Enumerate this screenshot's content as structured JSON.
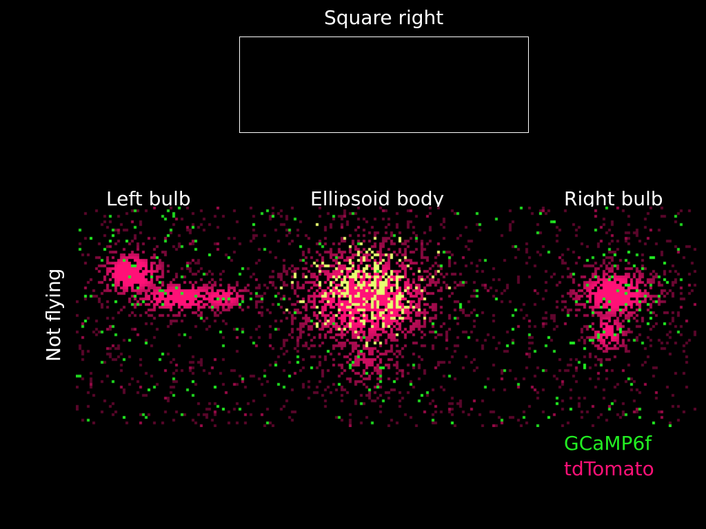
{
  "figure": {
    "title": "Square right",
    "row_label": "Not flying",
    "regions": {
      "left": "Left bulb",
      "center": "Ellipsoid body",
      "right": "Right bulb"
    }
  },
  "legend": {
    "items": [
      {
        "label": "GCaMP6f",
        "color": "#22ee22"
      },
      {
        "label": "tdTomato",
        "color": "#ff1177"
      }
    ]
  },
  "colors": {
    "background": "#000000",
    "text": "#ffffff",
    "green_channel": "#22ee22",
    "magenta_channel": "#ff1177",
    "overlap": "#e8ff70"
  }
}
